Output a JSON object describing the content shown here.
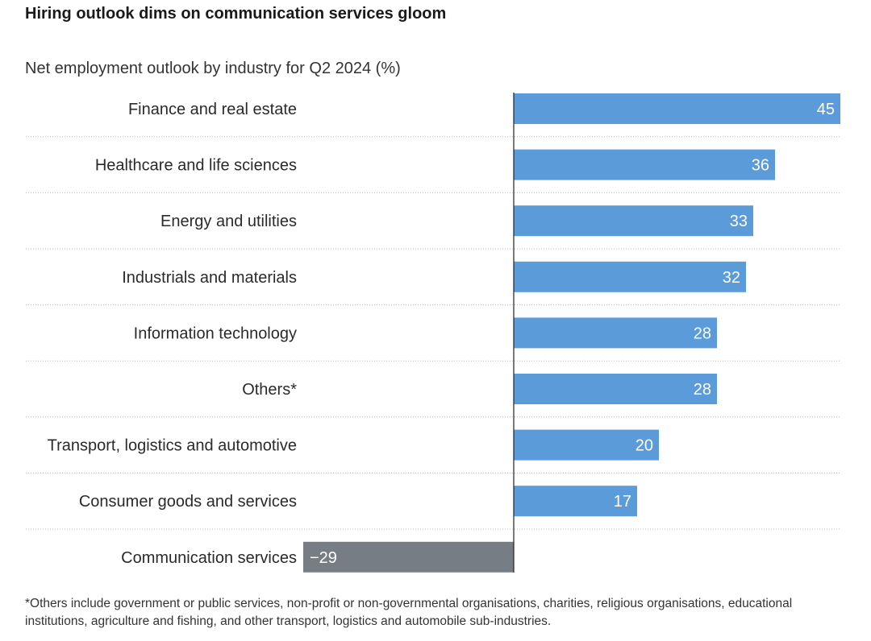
{
  "title": "Hiring outlook dims on communication services gloom",
  "subtitle": "Net employment outlook by industry for Q2 2024 (%)",
  "footnote": "*Others include government or public services, non-profit or non-governmental organisations, charities, religious organisations, educational institutions, agriculture and fishing, and other transport, logistics and automobile sub-industries.",
  "colors": {
    "positive": "#5b9bd9",
    "negative": "#777d85",
    "axis": "#222222",
    "grid": "#bbbbbb",
    "bar_label": "#ffffff",
    "category_label": "#2a2a2a"
  },
  "chart_data": {
    "type": "bar",
    "orientation": "horizontal",
    "categories": [
      "Finance and real estate",
      "Healthcare and life sciences",
      "Energy and utilities",
      "Industrials and materials",
      "Information technology",
      "Others*",
      "Transport, logistics and automotive",
      "Consumer goods and services",
      "Communication services"
    ],
    "values": [
      45,
      36,
      33,
      32,
      28,
      28,
      20,
      17,
      -29
    ],
    "value_labels": [
      "45",
      "36",
      "33",
      "32",
      "28",
      "28",
      "20",
      "17",
      "−29"
    ],
    "xlim": [
      -29,
      45
    ],
    "grid": "dotted row separators",
    "legend": "none"
  }
}
